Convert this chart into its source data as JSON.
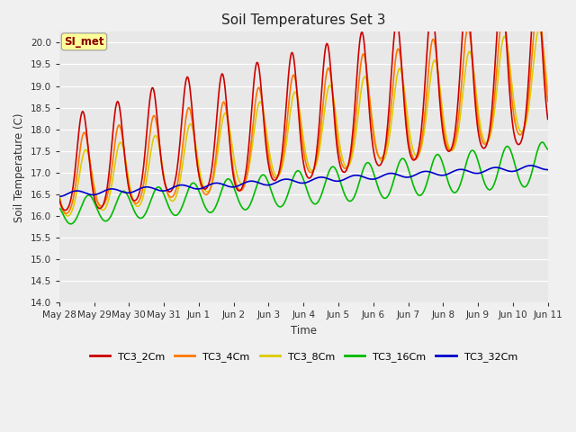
{
  "title": "Soil Temperatures Set 3",
  "xlabel": "Time",
  "ylabel": "Soil Temperature (C)",
  "ylim": [
    14.0,
    20.25
  ],
  "yticks": [
    14.0,
    14.5,
    15.0,
    15.5,
    16.0,
    16.5,
    17.0,
    17.5,
    18.0,
    18.5,
    19.0,
    19.5,
    20.0
  ],
  "bg_color": "#e8e8e8",
  "fig_color": "#f0f0f0",
  "annotation_text": "SI_met",
  "annotation_color": "#8b0000",
  "annotation_bg": "#ffff99",
  "series_colors": {
    "TC3_2Cm": "#cc0000",
    "TC3_4Cm": "#ff7700",
    "TC3_8Cm": "#ddcc00",
    "TC3_16Cm": "#00bb00",
    "TC3_32Cm": "#0000cc"
  },
  "series_lw": 1.2,
  "x_tick_labels": [
    "May 28",
    "May 29",
    "May 30",
    "May 31",
    "Jun 1",
    "Jun 2",
    "Jun 3",
    "Jun 4",
    "Jun 5",
    "Jun 6",
    "Jun 7",
    "Jun 8",
    "Jun 9",
    "Jun 10",
    "Jun 11"
  ],
  "n_days": 14
}
